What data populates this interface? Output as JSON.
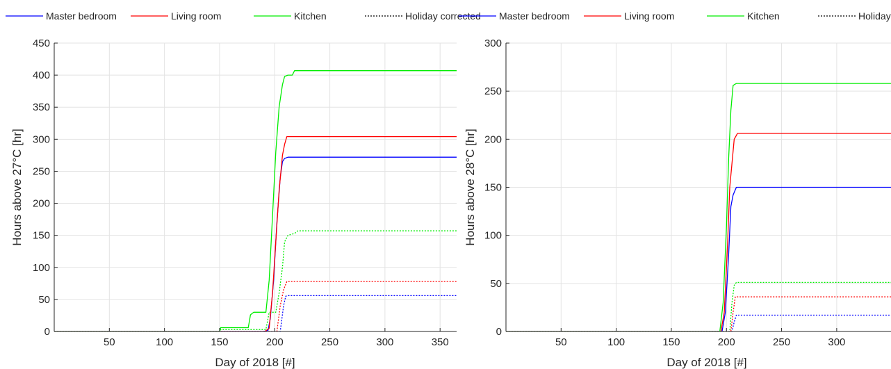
{
  "legend": [
    {
      "label": "Master bedroom",
      "color": "#0000ff",
      "style": "solid"
    },
    {
      "label": "Living room",
      "color": "#ff0000",
      "style": "solid"
    },
    {
      "label": "Kitchen",
      "color": "#00ee00",
      "style": "solid"
    },
    {
      "label": "Holiday corrected",
      "color": "#000000",
      "style": "dotted"
    }
  ],
  "chart_data": [
    {
      "type": "line",
      "xlabel": "Day of 2018 [#]",
      "ylabel": "Hours above 27°C [hr]",
      "xlim": [
        0,
        365
      ],
      "ylim": [
        0,
        450
      ],
      "xticks": [
        50,
        100,
        150,
        200,
        250,
        300,
        350
      ],
      "yticks": [
        0,
        50,
        100,
        150,
        200,
        250,
        300,
        350,
        400,
        450
      ],
      "grid": true,
      "legend_position": "top",
      "series": [
        {
          "name": "Master bedroom",
          "color": "#0000ff",
          "dash": "solid",
          "points": [
            [
              0,
              0
            ],
            [
              190,
              0
            ],
            [
              194,
              2
            ],
            [
              196,
              20
            ],
            [
              199,
              80
            ],
            [
              202,
              170
            ],
            [
              205,
              240
            ],
            [
              207,
              265
            ],
            [
              209,
              270
            ],
            [
              212,
              272
            ],
            [
              365,
              272
            ]
          ]
        },
        {
          "name": "Living room",
          "color": "#ff0000",
          "dash": "solid",
          "points": [
            [
              0,
              0
            ],
            [
              191,
              0
            ],
            [
              195,
              5
            ],
            [
              198,
              60
            ],
            [
              201,
              140
            ],
            [
              204,
              220
            ],
            [
              207,
              275
            ],
            [
              209,
              292
            ],
            [
              211,
              304
            ],
            [
              365,
              304
            ]
          ]
        },
        {
          "name": "Kitchen",
          "color": "#00ee00",
          "dash": "solid",
          "points": [
            [
              0,
              0
            ],
            [
              150,
              0
            ],
            [
              151,
              6
            ],
            [
              176,
              6
            ],
            [
              178,
              26
            ],
            [
              181,
              30
            ],
            [
              192,
              30
            ],
            [
              195,
              80
            ],
            [
              198,
              180
            ],
            [
              201,
              280
            ],
            [
              204,
              350
            ],
            [
              207,
              385
            ],
            [
              209,
              398
            ],
            [
              212,
              400
            ],
            [
              216,
              400
            ],
            [
              218,
              407
            ],
            [
              365,
              407
            ]
          ]
        },
        {
          "name": "Master bedroom (holiday corrected)",
          "color": "#0000ff",
          "dash": "dotted",
          "points": [
            [
              0,
              0
            ],
            [
              205,
              0
            ],
            [
              208,
              40
            ],
            [
              210,
              55
            ],
            [
              212,
              56
            ],
            [
              365,
              56
            ]
          ]
        },
        {
          "name": "Living room (holiday corrected)",
          "color": "#ff0000",
          "dash": "dotted",
          "points": [
            [
              0,
              0
            ],
            [
              202,
              0
            ],
            [
              205,
              40
            ],
            [
              208,
              65
            ],
            [
              211,
              78
            ],
            [
              365,
              78
            ]
          ]
        },
        {
          "name": "Kitchen (holiday corrected)",
          "color": "#00ee00",
          "dash": "dotted",
          "points": [
            [
              0,
              0
            ],
            [
              150,
              0
            ],
            [
              151,
              3
            ],
            [
              192,
              3
            ],
            [
              195,
              30
            ],
            [
              201,
              30
            ],
            [
              204,
              60
            ],
            [
              207,
              100
            ],
            [
              209,
              140
            ],
            [
              212,
              150
            ],
            [
              218,
              153
            ],
            [
              221,
              157
            ],
            [
              365,
              157
            ]
          ]
        }
      ]
    },
    {
      "type": "line",
      "xlabel": "Day of 2018 [#]",
      "ylabel": "Hours above 28°C [hr]",
      "xlim": [
        0,
        365
      ],
      "ylim": [
        0,
        300
      ],
      "xticks": [
        50,
        100,
        150,
        200,
        250,
        300,
        350
      ],
      "yticks": [
        0,
        50,
        100,
        150,
        200,
        250,
        300
      ],
      "grid": true,
      "legend_position": "top",
      "series": [
        {
          "name": "Master bedroom",
          "color": "#0000ff",
          "dash": "solid",
          "points": [
            [
              0,
              0
            ],
            [
              196,
              0
            ],
            [
              199,
              20
            ],
            [
              202,
              80
            ],
            [
              204,
              130
            ],
            [
              206,
              142
            ],
            [
              209,
              150
            ],
            [
              365,
              150
            ]
          ]
        },
        {
          "name": "Living room",
          "color": "#ff0000",
          "dash": "solid",
          "points": [
            [
              0,
              0
            ],
            [
              195,
              0
            ],
            [
              198,
              20
            ],
            [
              201,
              90
            ],
            [
              203,
              150
            ],
            [
              205,
              175
            ],
            [
              207,
              200
            ],
            [
              210,
              206
            ],
            [
              365,
              206
            ]
          ]
        },
        {
          "name": "Kitchen",
          "color": "#00ee00",
          "dash": "solid",
          "points": [
            [
              0,
              0
            ],
            [
              194,
              0
            ],
            [
              197,
              30
            ],
            [
              200,
              110
            ],
            [
              202,
              180
            ],
            [
              204,
              230
            ],
            [
              206,
              256
            ],
            [
              209,
              258
            ],
            [
              365,
              258
            ]
          ]
        },
        {
          "name": "Master bedroom (holiday corrected)",
          "color": "#0000ff",
          "dash": "dotted",
          "points": [
            [
              0,
              0
            ],
            [
              205,
              0
            ],
            [
              207,
              10
            ],
            [
              209,
              17
            ],
            [
              365,
              17
            ]
          ]
        },
        {
          "name": "Living room (holiday corrected)",
          "color": "#ff0000",
          "dash": "dotted",
          "points": [
            [
              0,
              0
            ],
            [
              204,
              0
            ],
            [
              206,
              20
            ],
            [
              208,
              36
            ],
            [
              365,
              36
            ]
          ]
        },
        {
          "name": "Kitchen (holiday corrected)",
          "color": "#00ee00",
          "dash": "dotted",
          "points": [
            [
              0,
              0
            ],
            [
              203,
              0
            ],
            [
              205,
              30
            ],
            [
              207,
              48
            ],
            [
              209,
              51
            ],
            [
              365,
              51
            ]
          ]
        }
      ]
    }
  ]
}
